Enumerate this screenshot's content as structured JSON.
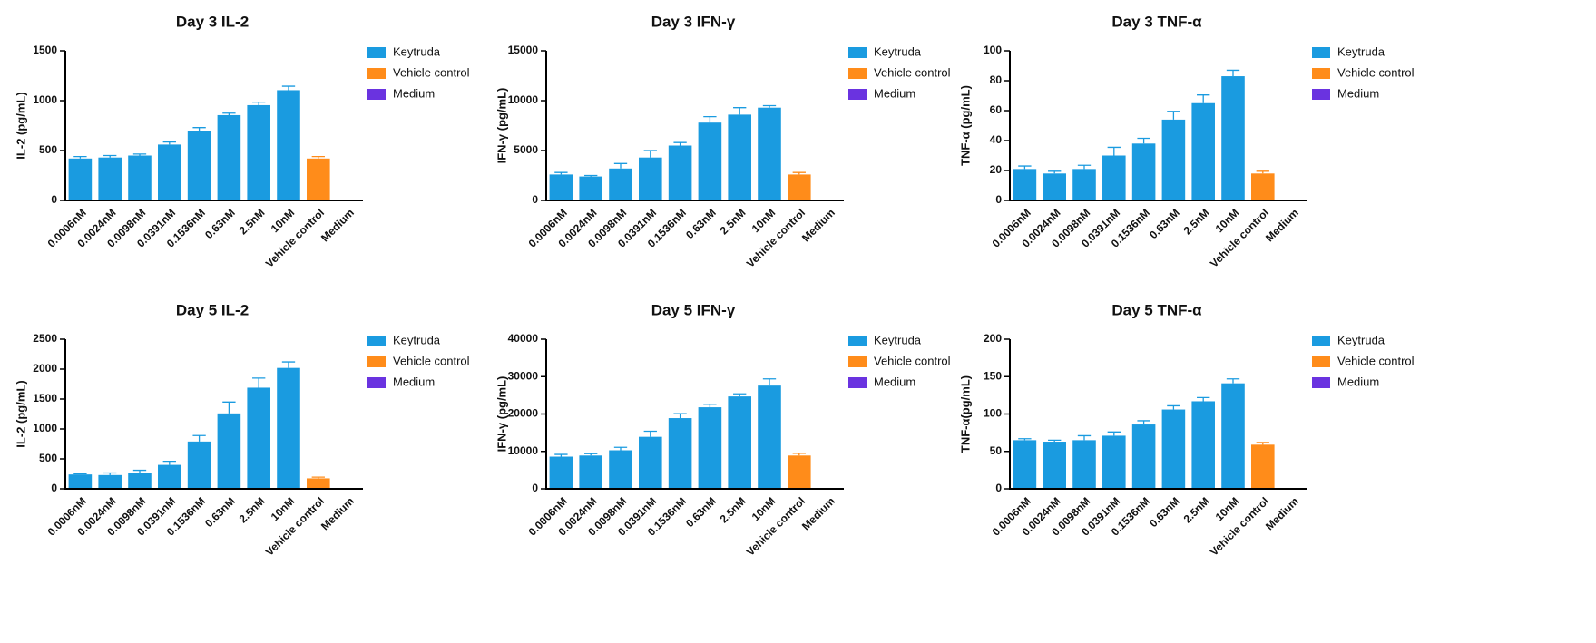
{
  "chart_data": [
    {
      "type": "bar",
      "title": "Day 3 IL-2",
      "y_label": "IL-2 (pg/mL)",
      "categories": [
        "0.0006nM",
        "0.0024nM",
        "0.0098nM",
        "0.0391nM",
        "0.1536nM",
        "0.63nM",
        "2.5nM",
        "10nM",
        "Vehicle control",
        "Medium"
      ],
      "series": [
        {
          "name": "Keytruda",
          "color": "#1a9be0",
          "values": [
            420,
            430,
            450,
            560,
            700,
            855,
            955,
            1105,
            null,
            null
          ],
          "errors": [
            20,
            20,
            15,
            25,
            30,
            20,
            30,
            40,
            null,
            null
          ]
        },
        {
          "name": "Vehicle control",
          "color": "#ff8c1a",
          "values": [
            null,
            null,
            null,
            null,
            null,
            null,
            null,
            null,
            420,
            null
          ],
          "errors": [
            null,
            null,
            null,
            null,
            null,
            null,
            null,
            null,
            20,
            null
          ]
        },
        {
          "name": "Medium",
          "color": "#6a33e0",
          "values": [
            null,
            null,
            null,
            null,
            null,
            null,
            null,
            null,
            null,
            3
          ],
          "errors": [
            null,
            null,
            null,
            null,
            null,
            null,
            null,
            null,
            null,
            null
          ]
        }
      ],
      "ylim": [
        0,
        1500
      ],
      "yticks": [
        0,
        500,
        1000,
        1500
      ]
    },
    {
      "type": "bar",
      "title": "Day 3 IFN-γ",
      "y_label": "IFN-γ (pg/mL)",
      "categories": [
        "0.0006nM",
        "0.0024nM",
        "0.0098nM",
        "0.0391nM",
        "0.1536nM",
        "0.63nM",
        "2.5nM",
        "10nM",
        "Vehicle control",
        "Medium"
      ],
      "series": [
        {
          "name": "Keytruda",
          "color": "#1a9be0",
          "values": [
            2600,
            2400,
            3200,
            4300,
            5500,
            7800,
            8600,
            9300,
            null,
            null
          ],
          "errors": [
            200,
            100,
            500,
            700,
            300,
            600,
            700,
            200,
            null,
            null
          ]
        },
        {
          "name": "Vehicle control",
          "color": "#ff8c1a",
          "values": [
            null,
            null,
            null,
            null,
            null,
            null,
            null,
            null,
            2600,
            null
          ],
          "errors": [
            null,
            null,
            null,
            null,
            null,
            null,
            null,
            null,
            200,
            null
          ]
        },
        {
          "name": "Medium",
          "color": "#6a33e0",
          "values": [
            null,
            null,
            null,
            null,
            null,
            null,
            null,
            null,
            null,
            20
          ],
          "errors": [
            null,
            null,
            null,
            null,
            null,
            null,
            null,
            null,
            null,
            null
          ]
        }
      ],
      "ylim": [
        0,
        15000
      ],
      "yticks": [
        0,
        5000,
        10000,
        15000
      ]
    },
    {
      "type": "bar",
      "title": "Day 3 TNF-α",
      "y_label": "TNF-α (pg/mL)",
      "categories": [
        "0.0006nM",
        "0.0024nM",
        "0.0098nM",
        "0.0391nM",
        "0.1536nM",
        "0.63nM",
        "2.5nM",
        "10nM",
        "Vehicle control",
        "Medium"
      ],
      "series": [
        {
          "name": "Keytruda",
          "color": "#1a9be0",
          "values": [
            21,
            18,
            21,
            30,
            38,
            54,
            65,
            83,
            null,
            null
          ],
          "errors": [
            2,
            1.5,
            2.5,
            5.5,
            3.5,
            5.5,
            5.5,
            4,
            null,
            null
          ]
        },
        {
          "name": "Vehicle control",
          "color": "#ff8c1a",
          "values": [
            null,
            null,
            null,
            null,
            null,
            null,
            null,
            null,
            18,
            null
          ],
          "errors": [
            null,
            null,
            null,
            null,
            null,
            null,
            null,
            null,
            1.5,
            null
          ]
        },
        {
          "name": "Medium",
          "color": "#6a33e0",
          "values": [
            null,
            null,
            null,
            null,
            null,
            null,
            null,
            null,
            null,
            0.2
          ],
          "errors": [
            null,
            null,
            null,
            null,
            null,
            null,
            null,
            null,
            null,
            null
          ]
        }
      ],
      "ylim": [
        0,
        100
      ],
      "yticks": [
        0,
        20,
        40,
        60,
        80,
        100
      ]
    },
    {
      "type": "bar",
      "title": "Day 5 IL-2",
      "y_label": "IL-2 (pg/mL)",
      "categories": [
        "0.0006nM",
        "0.0024nM",
        "0.0098nM",
        "0.0391nM",
        "0.1536nM",
        "0.63nM",
        "2.5nM",
        "10nM",
        "Vehicle control",
        "Medium"
      ],
      "series": [
        {
          "name": "Keytruda",
          "color": "#1a9be0",
          "values": [
            240,
            230,
            270,
            400,
            790,
            1260,
            1690,
            2020,
            null,
            null
          ],
          "errors": [
            10,
            35,
            40,
            60,
            100,
            190,
            160,
            100,
            null,
            null
          ]
        },
        {
          "name": "Vehicle control",
          "color": "#ff8c1a",
          "values": [
            null,
            null,
            null,
            null,
            null,
            null,
            null,
            null,
            175,
            null
          ],
          "errors": [
            null,
            null,
            null,
            null,
            null,
            null,
            null,
            null,
            20,
            null
          ]
        },
        {
          "name": "Medium",
          "color": "#6a33e0",
          "values": [
            null,
            null,
            null,
            null,
            null,
            null,
            null,
            null,
            null,
            3
          ],
          "errors": [
            null,
            null,
            null,
            null,
            null,
            null,
            null,
            null,
            null,
            null
          ]
        }
      ],
      "ylim": [
        0,
        2500
      ],
      "yticks": [
        0,
        500,
        1000,
        1500,
        2000,
        2500
      ]
    },
    {
      "type": "bar",
      "title": "Day 5 IFN-γ",
      "y_label": "IFN-γ (pg/mL)",
      "categories": [
        "0.0006nM",
        "0.0024nM",
        "0.0098nM",
        "0.0391nM",
        "0.1536nM",
        "0.63nM",
        "2.5nM",
        "10nM",
        "Vehicle control",
        "Medium"
      ],
      "series": [
        {
          "name": "Keytruda",
          "color": "#1a9be0",
          "values": [
            8600,
            8900,
            10300,
            13900,
            18900,
            21800,
            24700,
            27600,
            null,
            null
          ],
          "errors": [
            600,
            500,
            800,
            1500,
            1200,
            800,
            700,
            1800,
            null,
            null
          ]
        },
        {
          "name": "Vehicle control",
          "color": "#ff8c1a",
          "values": [
            null,
            null,
            null,
            null,
            null,
            null,
            null,
            null,
            8900,
            null
          ],
          "errors": [
            null,
            null,
            null,
            null,
            null,
            null,
            null,
            null,
            600,
            null
          ]
        },
        {
          "name": "Medium",
          "color": "#6a33e0",
          "values": [
            null,
            null,
            null,
            null,
            null,
            null,
            null,
            null,
            null,
            30
          ],
          "errors": [
            null,
            null,
            null,
            null,
            null,
            null,
            null,
            null,
            null,
            null
          ]
        }
      ],
      "ylim": [
        0,
        40000
      ],
      "yticks": [
        0,
        10000,
        20000,
        30000,
        40000
      ]
    },
    {
      "type": "bar",
      "title": "Day 5 TNF-α",
      "y_label": "TNF-α(pg/mL)",
      "categories": [
        "0.0006nM",
        "0.0024nM",
        "0.0098nM",
        "0.0391nM",
        "0.1536nM",
        "0.63nM",
        "2.5nM",
        "10nM",
        "Vehicle control",
        "Medium"
      ],
      "series": [
        {
          "name": "Keytruda",
          "color": "#1a9be0",
          "values": [
            65,
            63,
            65,
            71,
            86,
            106,
            117,
            141,
            null,
            null
          ],
          "errors": [
            2,
            2,
            6,
            5,
            5,
            5,
            5,
            6,
            null,
            null
          ]
        },
        {
          "name": "Vehicle control",
          "color": "#ff8c1a",
          "values": [
            null,
            null,
            null,
            null,
            null,
            null,
            null,
            null,
            59,
            null
          ],
          "errors": [
            null,
            null,
            null,
            null,
            null,
            null,
            null,
            null,
            3,
            null
          ]
        },
        {
          "name": "Medium",
          "color": "#6a33e0",
          "values": [
            null,
            null,
            null,
            null,
            null,
            null,
            null,
            null,
            null,
            1
          ],
          "errors": [
            null,
            null,
            null,
            null,
            null,
            null,
            null,
            null,
            null,
            null
          ]
        }
      ],
      "ylim": [
        0,
        200
      ],
      "yticks": [
        0,
        50,
        100,
        150,
        200
      ]
    }
  ]
}
